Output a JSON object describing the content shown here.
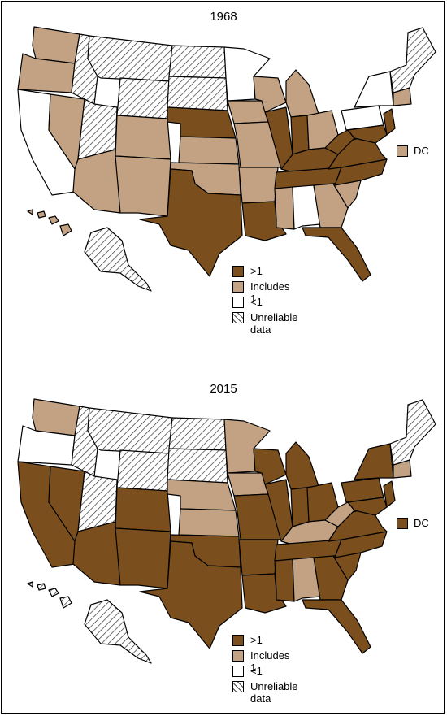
{
  "colors": {
    "dark": "#7a4e1d",
    "light": "#c3a283",
    "white": "#ffffff",
    "hatch": "hatch-pattern"
  },
  "maps": [
    {
      "title": "1968",
      "dc": {
        "label": "DC",
        "category": "includes1"
      },
      "states": {
        "WA": "includes1",
        "OR": "includes1",
        "CA": "lt1",
        "NV": "includes1",
        "ID": "unreliable",
        "MT": "unreliable",
        "WY": "unreliable",
        "UT": "unreliable",
        "AZ": "includes1",
        "CO": "includes1",
        "NM": "includes1",
        "ND": "unreliable",
        "SD": "unreliable",
        "NE": "gt1",
        "KS": "includes1",
        "OK": "includes1",
        "TX": "gt1",
        "MN": "lt1",
        "IA": "includes1",
        "MO": "includes1",
        "AR": "includes1",
        "LA": "gt1",
        "WI": "includes1",
        "IL": "gt1",
        "MI": "includes1",
        "IN": "gt1",
        "OH": "includes1",
        "KY": "gt1",
        "TN": "gt1",
        "MS": "includes1",
        "AL": "lt1",
        "GA": "includes1",
        "FL": "gt1",
        "SC": "includes1",
        "NC": "gt1",
        "VA": "gt1",
        "WV": "gt1",
        "PA": "lt1",
        "NY": "lt1",
        "NJ": "gt1",
        "MD": "gt1",
        "NE_US": "unreliable",
        "CT": "includes1",
        "AK": "unreliable",
        "HI": "includes1"
      }
    },
    {
      "title": "2015",
      "dc": {
        "label": "DC",
        "category": "gt1"
      },
      "states": {
        "WA": "includes1",
        "OR": "lt1",
        "CA": "gt1",
        "NV": "gt1",
        "ID": "unreliable",
        "MT": "unreliable",
        "WY": "unreliable",
        "UT": "unreliable",
        "AZ": "gt1",
        "CO": "gt1",
        "NM": "gt1",
        "ND": "unreliable",
        "SD": "unreliable",
        "NE": "includes1",
        "KS": "includes1",
        "OK": "gt1",
        "TX": "gt1",
        "MN": "includes1",
        "IA": "includes1",
        "MO": "gt1",
        "AR": "gt1",
        "LA": "gt1",
        "WI": "gt1",
        "IL": "gt1",
        "MI": "gt1",
        "IN": "gt1",
        "OH": "gt1",
        "KY": "includes1",
        "TN": "gt1",
        "MS": "gt1",
        "AL": "includes1",
        "GA": "gt1",
        "FL": "gt1",
        "SC": "gt1",
        "NC": "gt1",
        "VA": "gt1",
        "WV": "includes1",
        "PA": "gt1",
        "NY": "gt1",
        "NJ": "gt1",
        "MD": "gt1",
        "NE_US": "unreliable",
        "CT": "includes1",
        "AK": "unreliable",
        "HI": "unreliable"
      }
    }
  ],
  "legend": [
    {
      "key": "gt1",
      "label": ">1"
    },
    {
      "key": "includes1",
      "label": "Includes 1"
    },
    {
      "key": "lt1",
      "label": "<1"
    },
    {
      "key": "unreliable",
      "label": "Unreliable data"
    }
  ]
}
